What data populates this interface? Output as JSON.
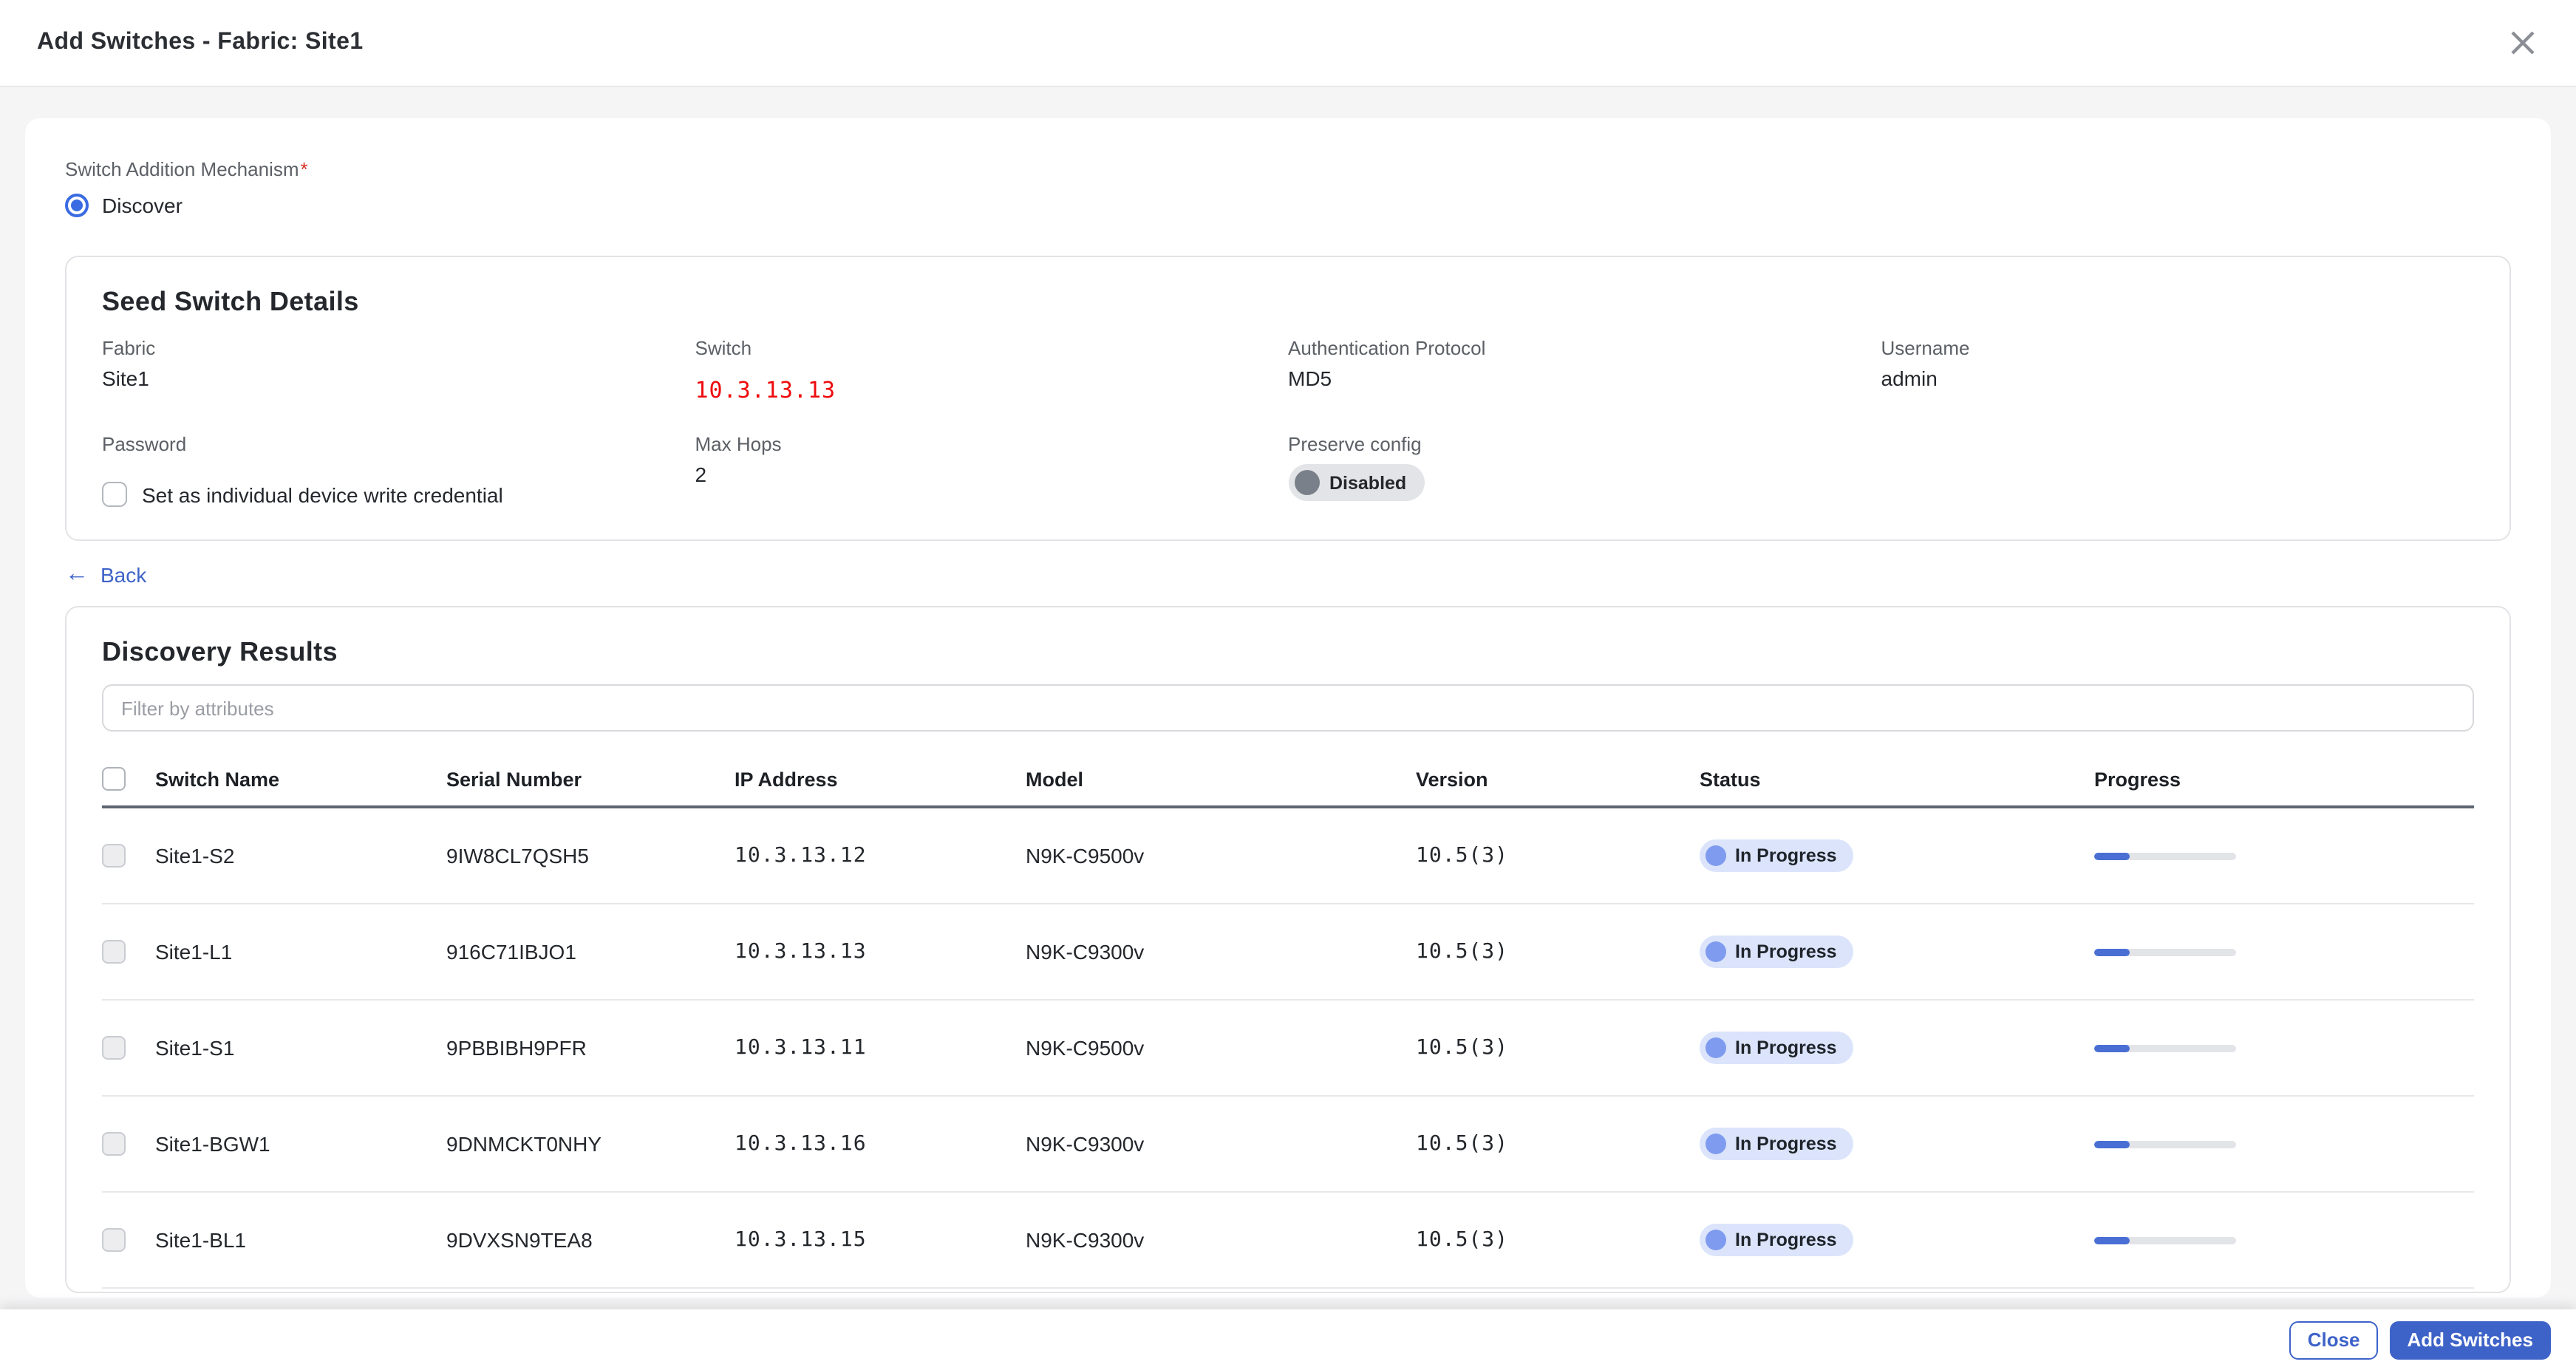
{
  "header": {
    "title": "Add Switches - Fabric: Site1"
  },
  "mechanism": {
    "label": "Switch Addition Mechanism",
    "required_mark": "*",
    "option": "Discover"
  },
  "seed": {
    "title": "Seed Switch Details",
    "fabric_label": "Fabric",
    "fabric_value": "Site1",
    "switch_label": "Switch",
    "switch_value": "10.3.13.13",
    "auth_label": "Authentication Protocol",
    "auth_value": "MD5",
    "username_label": "Username",
    "username_value": "admin",
    "password_label": "Password",
    "maxhops_label": "Max Hops",
    "maxhops_value": "2",
    "preserve_label": "Preserve config",
    "preserve_value": "Disabled",
    "checkbox_label": "Set as individual device write credential"
  },
  "back_label": "Back",
  "results": {
    "title": "Discovery Results",
    "filter_placeholder": "Filter by attributes",
    "columns": [
      "Switch Name",
      "Serial Number",
      "IP Address",
      "Model",
      "Version",
      "Status",
      "Progress"
    ],
    "rows": [
      {
        "name": "Site1-S2",
        "serial": "9IW8CL7QSH5",
        "ip": "10.3.13.12",
        "model": "N9K-C9500v",
        "version": "10.5(3)",
        "status": "In Progress",
        "progress_pct": 25
      },
      {
        "name": "Site1-L1",
        "serial": "916C71IBJO1",
        "ip": "10.3.13.13",
        "model": "N9K-C9300v",
        "version": "10.5(3)",
        "status": "In Progress",
        "progress_pct": 25
      },
      {
        "name": "Site1-S1",
        "serial": "9PBBIBH9PFR",
        "ip": "10.3.13.11",
        "model": "N9K-C9500v",
        "version": "10.5(3)",
        "status": "In Progress",
        "progress_pct": 25
      },
      {
        "name": "Site1-BGW1",
        "serial": "9DNMCKT0NHY",
        "ip": "10.3.13.16",
        "model": "N9K-C9300v",
        "version": "10.5(3)",
        "status": "In Progress",
        "progress_pct": 25
      },
      {
        "name": "Site1-BL1",
        "serial": "9DVXSN9TEA8",
        "ip": "10.3.13.15",
        "model": "N9K-C9300v",
        "version": "10.5(3)",
        "status": "In Progress",
        "progress_pct": 25
      }
    ]
  },
  "footer": {
    "close_label": "Close",
    "add_label": "Add Switches"
  },
  "colors": {
    "accent": "#3e63c8",
    "radio_blue": "#3a6be2",
    "red_value": "#ee0b0e",
    "status_badge_bg": "#dbe4fb",
    "status_badge_dot": "#7e9bef",
    "progress_fill": "#4a6fd4",
    "progress_track": "#e2e4e8",
    "required_red": "#d93025"
  }
}
